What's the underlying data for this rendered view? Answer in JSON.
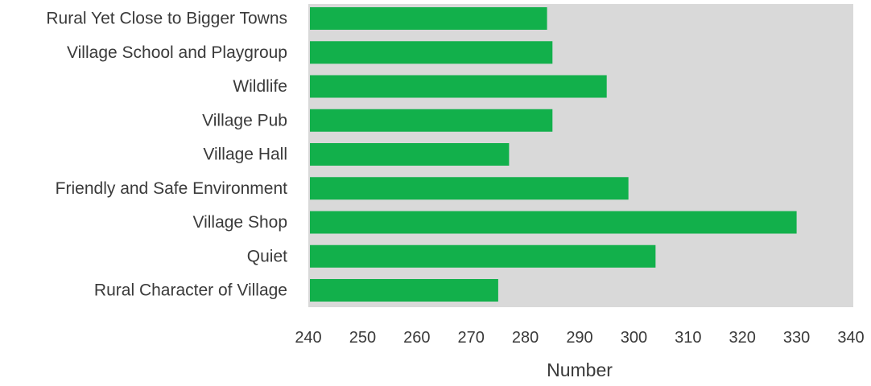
{
  "chart_data": {
    "type": "bar",
    "orientation": "horizontal",
    "categories": [
      "Rural Yet Close to Bigger Towns",
      "Village School and Playgroup",
      "Wildlife",
      "Village Pub",
      "Village Hall",
      "Friendly and Safe Environment",
      "Village Shop",
      "Quiet",
      "Rural Character of Village"
    ],
    "values": [
      284,
      285,
      295,
      285,
      277,
      299,
      330,
      304,
      275
    ],
    "xlabel": "Number",
    "ylabel": "",
    "title": "",
    "xlim": [
      240,
      340
    ],
    "xticks": [
      240,
      250,
      260,
      270,
      280,
      290,
      300,
      310,
      320,
      330,
      340
    ],
    "grid": false,
    "legend": "none"
  },
  "colors": {
    "bar": "#12b04b",
    "plot_background": "#d9d9d9",
    "page_background": "#ffffff",
    "text": "#3a3a3a"
  }
}
